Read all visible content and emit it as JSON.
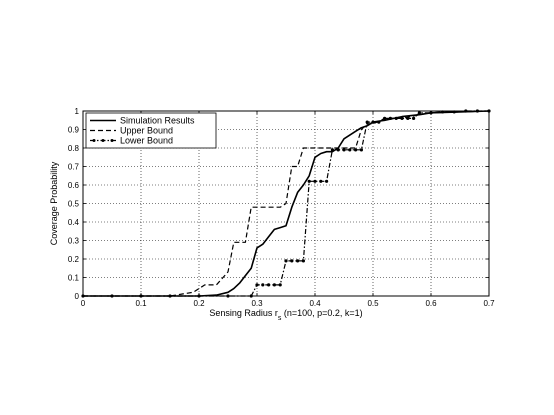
{
  "chart_data": {
    "type": "line",
    "title": "",
    "xlabel": "Sensing Radius r",
    "xlabel_subscript": "s",
    "xlabel_suffix": " (n=100, p=0.2, k=1)",
    "ylabel": "Coverage Probability",
    "xlim": [
      0,
      0.7
    ],
    "ylim": [
      0,
      1
    ],
    "xticks": [
      "0",
      "0.1",
      "0.2",
      "0.3",
      "0.4",
      "0.5",
      "0.6",
      "0.7"
    ],
    "yticks": [
      "0",
      "0.1",
      "0.2",
      "0.3",
      "0.4",
      "0.5",
      "0.6",
      "0.7",
      "0.8",
      "0.9",
      "1"
    ],
    "grid": true,
    "legend": "top-left",
    "series": [
      {
        "name": "Simulation Results",
        "style": "solid",
        "x": [
          0,
          0.05,
          0.1,
          0.15,
          0.2,
          0.23,
          0.25,
          0.26,
          0.27,
          0.28,
          0.29,
          0.3,
          0.31,
          0.32,
          0.33,
          0.34,
          0.35,
          0.36,
          0.37,
          0.38,
          0.39,
          0.4,
          0.41,
          0.42,
          0.43,
          0.44,
          0.45,
          0.46,
          0.47,
          0.48,
          0.49,
          0.5,
          0.52,
          0.55,
          0.58,
          0.6,
          0.65,
          0.7
        ],
        "y": [
          0,
          0,
          0,
          0,
          0,
          0.005,
          0.02,
          0.04,
          0.07,
          0.11,
          0.15,
          0.26,
          0.28,
          0.32,
          0.36,
          0.37,
          0.38,
          0.48,
          0.56,
          0.6,
          0.65,
          0.75,
          0.77,
          0.78,
          0.78,
          0.8,
          0.85,
          0.87,
          0.89,
          0.91,
          0.92,
          0.94,
          0.95,
          0.97,
          0.98,
          0.99,
          0.995,
          1.0
        ]
      },
      {
        "name": "Upper Bound",
        "style": "dashed",
        "x": [
          0,
          0.15,
          0.17,
          0.19,
          0.21,
          0.23,
          0.25,
          0.26,
          0.27,
          0.28,
          0.29,
          0.3,
          0.31,
          0.32,
          0.33,
          0.34,
          0.35,
          0.36,
          0.37,
          0.38,
          0.39,
          0.4,
          0.41,
          0.42,
          0.43,
          0.44,
          0.45,
          0.46,
          0.47,
          0.48,
          0.49,
          0.5,
          0.52,
          0.55,
          0.58,
          0.6,
          0.65,
          0.7
        ],
        "y": [
          0,
          0,
          0.01,
          0.02,
          0.06,
          0.06,
          0.13,
          0.29,
          0.29,
          0.29,
          0.48,
          0.48,
          0.48,
          0.48,
          0.48,
          0.48,
          0.5,
          0.7,
          0.7,
          0.8,
          0.8,
          0.8,
          0.8,
          0.8,
          0.8,
          0.8,
          0.8,
          0.8,
          0.8,
          0.9,
          0.93,
          0.93,
          0.96,
          0.96,
          0.98,
          0.99,
          0.995,
          1.0
        ]
      },
      {
        "name": "Lower Bound",
        "style": "dashdot-marker",
        "x": [
          0,
          0.05,
          0.1,
          0.15,
          0.2,
          0.25,
          0.29,
          0.3,
          0.31,
          0.32,
          0.33,
          0.34,
          0.35,
          0.36,
          0.37,
          0.38,
          0.39,
          0.4,
          0.41,
          0.42,
          0.43,
          0.44,
          0.45,
          0.46,
          0.47,
          0.48,
          0.49,
          0.5,
          0.51,
          0.52,
          0.53,
          0.54,
          0.55,
          0.56,
          0.57,
          0.58,
          0.6,
          0.62,
          0.64,
          0.66,
          0.68,
          0.7
        ],
        "y": [
          0,
          0,
          0,
          0,
          0,
          0,
          0,
          0.06,
          0.06,
          0.06,
          0.06,
          0.06,
          0.19,
          0.19,
          0.19,
          0.19,
          0.62,
          0.62,
          0.62,
          0.62,
          0.79,
          0.79,
          0.79,
          0.79,
          0.79,
          0.79,
          0.94,
          0.94,
          0.94,
          0.96,
          0.96,
          0.96,
          0.96,
          0.96,
          0.96,
          0.99,
          0.99,
          0.995,
          0.995,
          1.0,
          1.0,
          1.0
        ]
      }
    ]
  }
}
